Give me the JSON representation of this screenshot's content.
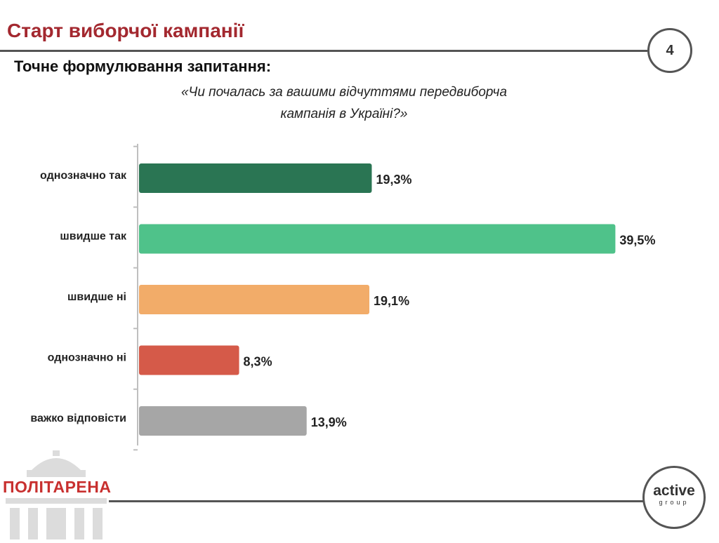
{
  "header": {
    "title": "Старт виборчої кампанії",
    "page_number": "4"
  },
  "subtitle": "Точне формулювання запитання:",
  "question": {
    "line1": "«Чи почалась за вашими відчуттями передвиборча",
    "line2": "кампанія в Україні?»"
  },
  "chart_data": {
    "type": "bar",
    "orientation": "horizontal",
    "categories": [
      "однозначно так",
      "швидше так",
      "швидше ні",
      "однозначно ні",
      "важко відповісти"
    ],
    "values": [
      19.3,
      39.5,
      19.1,
      8.3,
      13.9
    ],
    "value_labels": [
      "19,3%",
      "39,5%",
      "19,1%",
      "8,3%",
      "13,9%"
    ],
    "colors": [
      "#2a7553",
      "#4fc28a",
      "#f2ac69",
      "#d55a49",
      "#a6a6a6"
    ],
    "xlim": [
      0,
      40
    ],
    "grid": false
  },
  "logos": {
    "left": "ПОЛІТАРЕНА",
    "right_main": "active",
    "right_sub": "group"
  },
  "colors": {
    "title": "#a3282f",
    "logo_red": "#c8302f",
    "rule": "#555555"
  }
}
